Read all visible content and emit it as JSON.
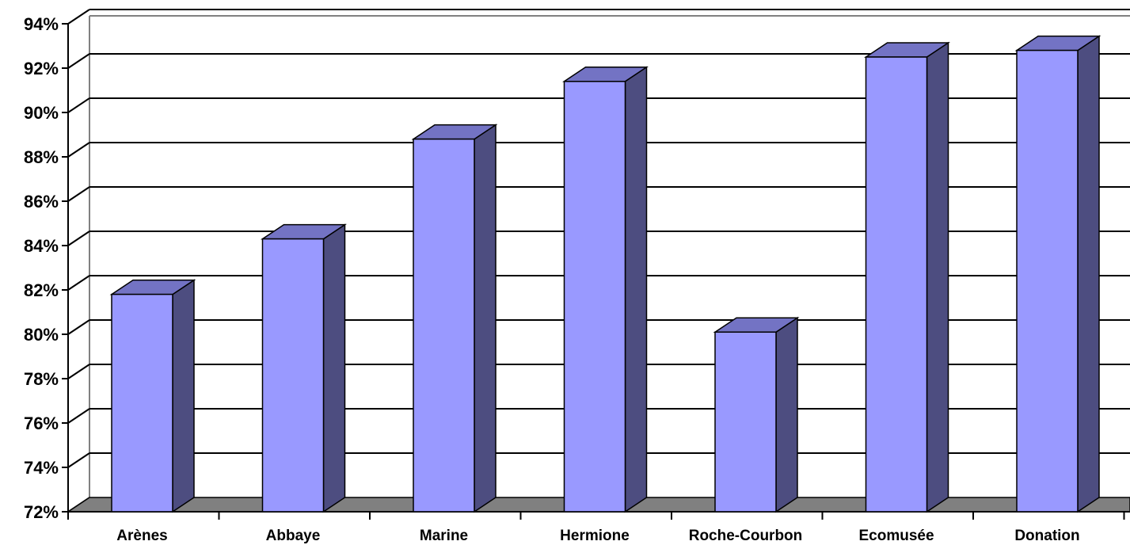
{
  "chart_data": {
    "type": "bar",
    "style": "3d-column",
    "categories": [
      "Arènes",
      "Abbaye",
      "Marine",
      "Hermione",
      "Roche-Courbon",
      "Ecomusée",
      "Donation"
    ],
    "values": [
      81.8,
      84.3,
      88.8,
      91.4,
      80.1,
      92.5,
      92.8
    ],
    "value_unit": "%",
    "ylim": [
      72,
      94
    ],
    "yticks": [
      "72%",
      "74%",
      "76%",
      "78%",
      "80%",
      "82%",
      "84%",
      "86%",
      "88%",
      "90%",
      "92%",
      "94%"
    ],
    "title": "",
    "xlabel": "",
    "ylabel": "",
    "grid": true,
    "legend": "none",
    "colors": {
      "bar_front": "#9999ff",
      "bar_top": "#7373c4",
      "bar_side": "#4d4d80",
      "floor": "#808080",
      "wall_border": "#808080",
      "gridline": "#000000"
    }
  }
}
